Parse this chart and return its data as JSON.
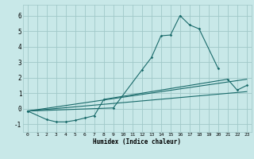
{
  "xlabel": "Humidex (Indice chaleur)",
  "background_color": "#c8e8e8",
  "grid_color": "#a0c8c8",
  "line_color": "#1a6b6b",
  "xlim": [
    -0.5,
    23.5
  ],
  "ylim": [
    -1.5,
    6.7
  ],
  "xticks": [
    0,
    1,
    2,
    3,
    4,
    5,
    6,
    7,
    8,
    9,
    10,
    11,
    12,
    13,
    14,
    15,
    16,
    17,
    18,
    19,
    20,
    21,
    22,
    23
  ],
  "yticks": [
    -1,
    0,
    1,
    2,
    3,
    4,
    5,
    6
  ],
  "series_peak": {
    "x": [
      0,
      9,
      12,
      13,
      14,
      15,
      16,
      17,
      18,
      20
    ],
    "y": [
      -0.15,
      0.05,
      2.5,
      3.3,
      4.7,
      4.75,
      6.0,
      5.4,
      5.15,
      2.6
    ]
  },
  "series_lower": {
    "x": [
      0,
      2,
      3,
      4,
      5,
      6,
      7,
      8,
      21,
      22,
      23
    ],
    "y": [
      -0.15,
      -0.7,
      -0.85,
      -0.85,
      -0.75,
      -0.6,
      -0.45,
      0.6,
      1.9,
      1.2,
      1.5
    ]
  },
  "series_line1": {
    "x": [
      0,
      23
    ],
    "y": [
      -0.15,
      1.9
    ]
  },
  "series_line2": {
    "x": [
      0,
      23
    ],
    "y": [
      -0.15,
      1.1
    ]
  }
}
